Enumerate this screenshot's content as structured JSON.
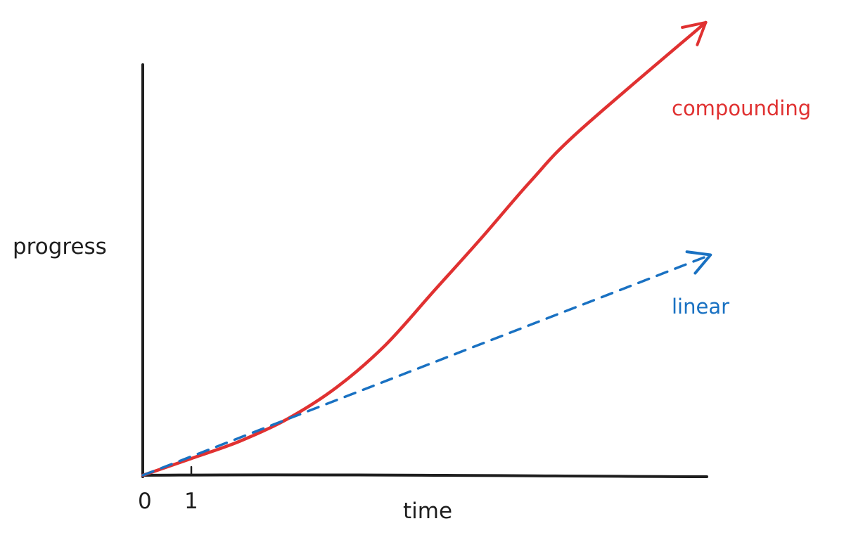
{
  "chart_data": {
    "type": "line",
    "xlabel": "time",
    "ylabel": "progress",
    "x_ticks": [
      "0",
      "1"
    ],
    "xlim": [
      0,
      11.6
    ],
    "ylim": [
      0,
      9.4
    ],
    "grid": false,
    "legend": "inline labels at line ends",
    "series": [
      {
        "name": "compounding",
        "color": "#e03131",
        "style": "solid",
        "arrow_end": true,
        "points": [
          [
            0,
            0
          ],
          [
            1,
            0.42
          ],
          [
            2,
            0.85
          ],
          [
            3,
            1.42
          ],
          [
            4,
            2.2
          ],
          [
            5,
            3.25
          ],
          [
            6,
            4.6
          ],
          [
            7,
            5.95
          ],
          [
            8,
            7.35
          ],
          [
            9,
            8.6
          ],
          [
            11.6,
            11.3
          ]
        ]
      },
      {
        "name": "linear",
        "color": "#1971c2",
        "style": "dashed",
        "arrow_end": true,
        "points": [
          [
            0,
            0
          ],
          [
            11.7,
            5.5
          ]
        ]
      }
    ]
  },
  "labels": {
    "y_axis": "progress",
    "x_axis": "time",
    "tick_0": "0",
    "tick_1": "1",
    "compounding": "compounding",
    "linear": "linear"
  }
}
